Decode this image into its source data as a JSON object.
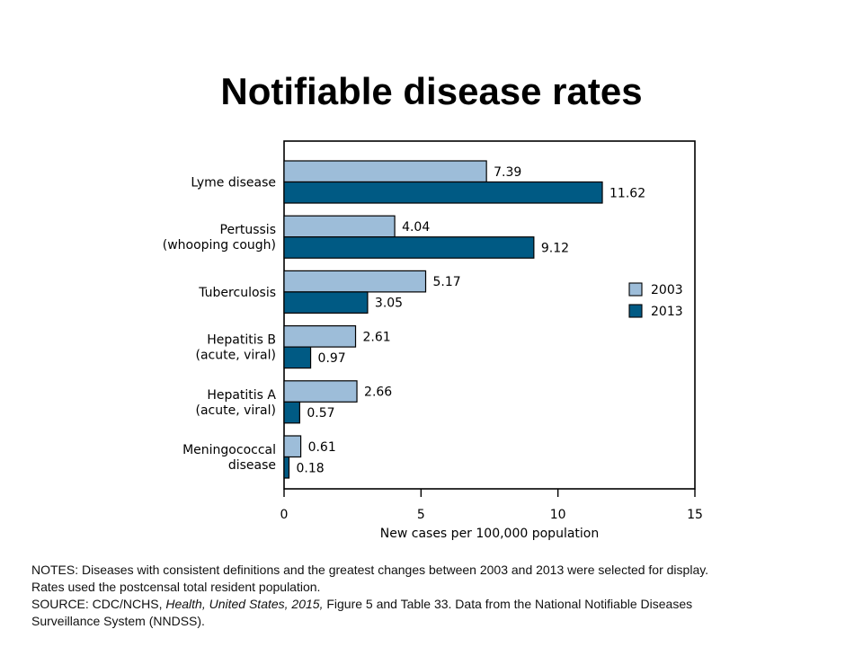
{
  "title": "Notifiable disease rates",
  "notes": {
    "line1": "NOTES: Diseases with consistent definitions and the greatest changes between 2003 and 2013 were selected for display.",
    "line2": "Rates used the postcensal total resident population.",
    "source_prefix": "SOURCE: CDC/NCHS, ",
    "source_title": "Health, United States, 2015,",
    "source_suffix": " Figure 5 and Table 33.  Data from the National Notifiable Diseases",
    "line4": "Surveillance System (NNDSS)."
  },
  "chart_data": {
    "type": "bar",
    "orientation": "horizontal",
    "categories": [
      [
        "Lyme disease"
      ],
      [
        "Pertussis",
        "(whooping cough)"
      ],
      [
        "Tuberculosis"
      ],
      [
        "Hepatitis B",
        "(acute, viral)"
      ],
      [
        "Hepatitis A",
        "(acute, viral)"
      ],
      [
        "Meningococcal",
        "disease"
      ]
    ],
    "series": [
      {
        "name": "2003",
        "color": "#9dbdd9",
        "values": [
          7.39,
          4.04,
          5.17,
          2.61,
          2.66,
          0.61
        ]
      },
      {
        "name": "2013",
        "color": "#005a84",
        "values": [
          11.62,
          9.12,
          3.05,
          0.97,
          0.57,
          0.18
        ]
      }
    ],
    "value_labels_2003": [
      "7.39",
      "4.04",
      "5.17",
      "2.61",
      "2.66",
      "0.61"
    ],
    "value_labels_2013": [
      "11.62",
      "9.12",
      "3.05",
      "0.97",
      "0.57",
      "0.18"
    ],
    "xlabel": "New cases per 100,000 population",
    "xlim": [
      0,
      15
    ],
    "xticks": [
      0,
      5,
      10,
      15
    ],
    "grid": false,
    "legend_position": "right"
  }
}
